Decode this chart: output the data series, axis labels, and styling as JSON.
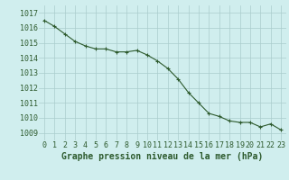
{
  "x": [
    0,
    1,
    2,
    3,
    4,
    5,
    6,
    7,
    8,
    9,
    10,
    11,
    12,
    13,
    14,
    15,
    16,
    17,
    18,
    19,
    20,
    21,
    22,
    23
  ],
  "y": [
    1016.5,
    1016.1,
    1015.6,
    1015.1,
    1014.8,
    1014.6,
    1014.6,
    1014.4,
    1014.4,
    1014.5,
    1014.2,
    1013.8,
    1013.3,
    1012.6,
    1011.7,
    1011.0,
    1010.3,
    1010.1,
    1009.8,
    1009.7,
    1009.7,
    1009.4,
    1009.6,
    1009.2
  ],
  "line_color": "#2d5a2d",
  "marker": "+",
  "marker_size": 3,
  "background_color": "#d0eeee",
  "grid_color": "#aacccc",
  "xlabel": "Graphe pression niveau de la mer (hPa)",
  "xlabel_color": "#2d5a2d",
  "tick_color": "#2d5a2d",
  "ylim_min": 1008.5,
  "ylim_max": 1017.5,
  "xtick_labels": [
    "0",
    "1",
    "2",
    "3",
    "4",
    "5",
    "6",
    "7",
    "8",
    "9",
    "10",
    "11",
    "12",
    "13",
    "14",
    "15",
    "16",
    "17",
    "18",
    "19",
    "20",
    "21",
    "22",
    "23"
  ],
  "ytick_labels": [
    "1009",
    "1010",
    "1011",
    "1012",
    "1013",
    "1014",
    "1015",
    "1016",
    "1017"
  ],
  "ytick_values": [
    1009,
    1010,
    1011,
    1012,
    1013,
    1014,
    1015,
    1016,
    1017
  ],
  "tick_fontsize": 6,
  "xlabel_fontsize": 7
}
